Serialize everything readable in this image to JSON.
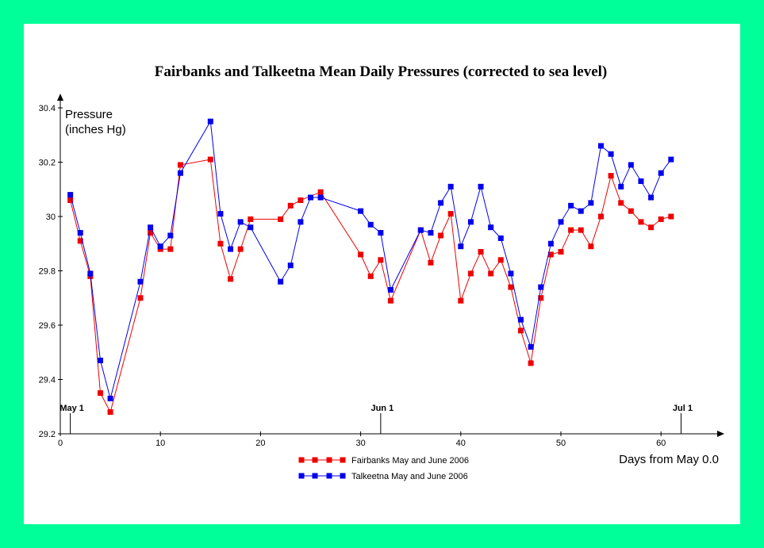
{
  "colors": {
    "background": "#00FF99",
    "panel": "#FFFFFF",
    "fairbanks": "#EE0000",
    "talkeetna": "#0000EE"
  },
  "chart_data": {
    "type": "line",
    "title": "Fairbanks and Talkeetna Mean Daily Pressures (corrected to sea level)",
    "ylabel_line1": "Pressure",
    "ylabel_line2": "(inches Hg)",
    "xlabel": "Days from May 0.0",
    "xlim": [
      0,
      65
    ],
    "ylim": [
      29.2,
      30.4
    ],
    "xticks": [
      "0",
      "10",
      "20",
      "30",
      "40",
      "50",
      "60"
    ],
    "yticks": [
      "29.2",
      "29.4",
      "29.6",
      "29.8",
      "30",
      "30.2",
      "30.4"
    ],
    "grid": false,
    "legend_position": "bottom-center",
    "annotations": [
      {
        "label": "May 1",
        "x": 1
      },
      {
        "label": "Jun 1",
        "x": 32
      },
      {
        "label": "Jul 1",
        "x": 62
      }
    ],
    "series": [
      {
        "name": "Fairbanks May and June 2006",
        "color": "#EE0000",
        "points": [
          [
            1,
            30.06
          ],
          [
            2,
            29.91
          ],
          [
            3,
            29.78
          ],
          [
            4,
            29.35
          ],
          [
            5,
            29.28
          ],
          [
            8,
            29.7
          ],
          [
            9,
            29.94
          ],
          [
            10,
            29.88
          ],
          [
            11,
            29.88
          ],
          [
            12,
            30.19
          ],
          [
            15,
            30.21
          ],
          [
            16,
            29.9
          ],
          [
            17,
            29.77
          ],
          [
            18,
            29.88
          ],
          [
            19,
            29.99
          ],
          [
            22,
            29.99
          ],
          [
            23,
            30.04
          ],
          [
            24,
            30.06
          ],
          [
            26,
            30.09
          ],
          [
            30,
            29.86
          ],
          [
            31,
            29.78
          ],
          [
            32,
            29.84
          ],
          [
            33,
            29.69
          ],
          [
            36,
            29.95
          ],
          [
            37,
            29.83
          ],
          [
            38,
            29.93
          ],
          [
            39,
            30.01
          ],
          [
            40,
            29.69
          ],
          [
            41,
            29.79
          ],
          [
            42,
            29.87
          ],
          [
            43,
            29.79
          ],
          [
            44,
            29.84
          ],
          [
            45,
            29.74
          ],
          [
            46,
            29.58
          ],
          [
            47,
            29.46
          ],
          [
            48,
            29.7
          ],
          [
            49,
            29.86
          ],
          [
            50,
            29.87
          ],
          [
            51,
            29.95
          ],
          [
            52,
            29.95
          ],
          [
            53,
            29.89
          ],
          [
            54,
            30.0
          ],
          [
            55,
            30.15
          ],
          [
            56,
            30.05
          ],
          [
            57,
            30.02
          ],
          [
            58,
            29.98
          ],
          [
            59,
            29.96
          ],
          [
            60,
            29.99
          ],
          [
            61,
            30.0
          ]
        ]
      },
      {
        "name": "Talkeetna May and June 2006",
        "color": "#0000EE",
        "points": [
          [
            1,
            30.08
          ],
          [
            2,
            29.94
          ],
          [
            3,
            29.79
          ],
          [
            4,
            29.47
          ],
          [
            5,
            29.33
          ],
          [
            8,
            29.76
          ],
          [
            9,
            29.96
          ],
          [
            10,
            29.89
          ],
          [
            11,
            29.93
          ],
          [
            12,
            30.16
          ],
          [
            15,
            30.35
          ],
          [
            16,
            30.01
          ],
          [
            17,
            29.88
          ],
          [
            18,
            29.98
          ],
          [
            19,
            29.96
          ],
          [
            22,
            29.76
          ],
          [
            23,
            29.82
          ],
          [
            24,
            29.98
          ],
          [
            25,
            30.07
          ],
          [
            26,
            30.07
          ],
          [
            30,
            30.02
          ],
          [
            31,
            29.97
          ],
          [
            32,
            29.94
          ],
          [
            33,
            29.73
          ],
          [
            36,
            29.95
          ],
          [
            37,
            29.94
          ],
          [
            38,
            30.05
          ],
          [
            39,
            30.11
          ],
          [
            40,
            29.89
          ],
          [
            41,
            29.98
          ],
          [
            42,
            30.11
          ],
          [
            43,
            29.96
          ],
          [
            44,
            29.92
          ],
          [
            45,
            29.79
          ],
          [
            46,
            29.62
          ],
          [
            47,
            29.52
          ],
          [
            48,
            29.74
          ],
          [
            49,
            29.9
          ],
          [
            50,
            29.98
          ],
          [
            51,
            30.04
          ],
          [
            52,
            30.02
          ],
          [
            53,
            30.05
          ],
          [
            54,
            30.26
          ],
          [
            55,
            30.23
          ],
          [
            56,
            30.11
          ],
          [
            57,
            30.19
          ],
          [
            58,
            30.13
          ],
          [
            59,
            30.07
          ],
          [
            60,
            30.16
          ],
          [
            61,
            30.21
          ]
        ]
      }
    ]
  }
}
